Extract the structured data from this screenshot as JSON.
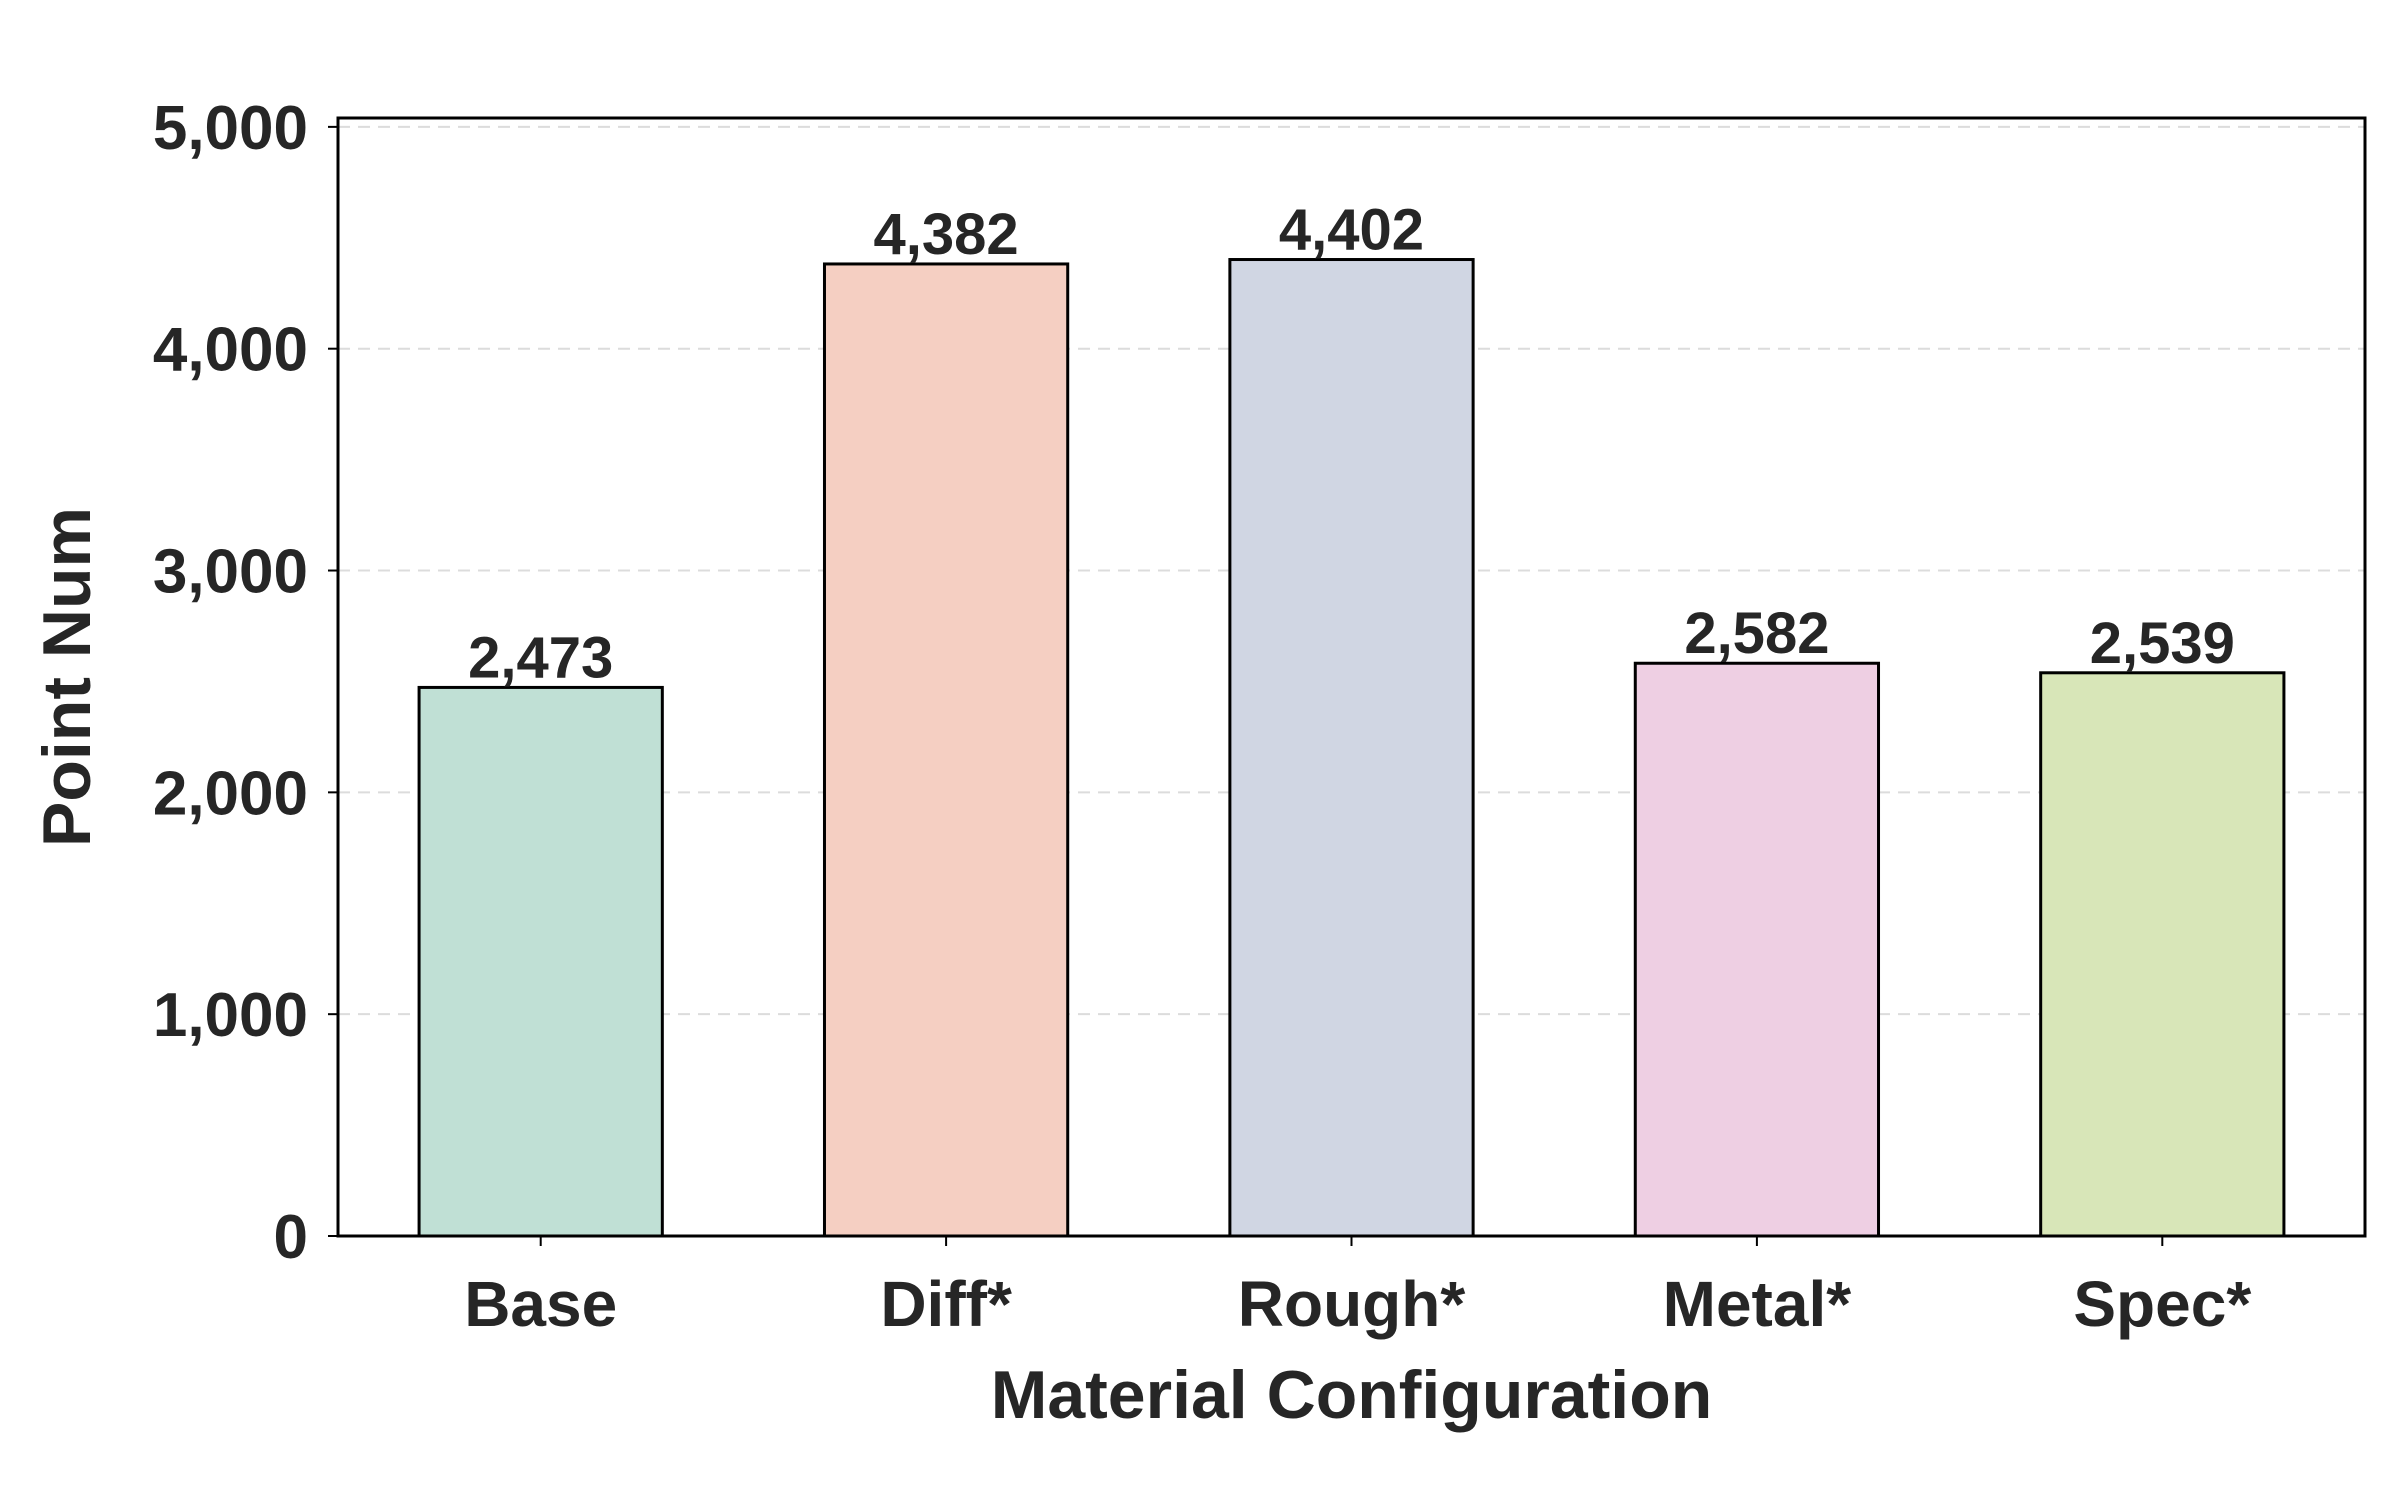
{
  "chart_data": {
    "type": "bar",
    "title": "",
    "xlabel": "Material Configuration",
    "ylabel": "Point Num",
    "categories": [
      "Base",
      "Diff*",
      "Rough*",
      "Metal*",
      "Spec*"
    ],
    "values": [
      2473,
      4382,
      4402,
      2582,
      2539
    ],
    "value_labels": [
      "2,473",
      "4,382",
      "4,402",
      "2,582",
      "2,539"
    ],
    "bar_colors": [
      "#c0e0d5",
      "#f5cfc2",
      "#d0d6e3",
      "#eecfe3",
      "#d8e6b8"
    ],
    "bar_edge_color": "#000000",
    "ylim": [
      0,
      5040
    ],
    "yticks": [
      0,
      1000,
      2000,
      3000,
      4000,
      5000
    ],
    "ytick_labels": [
      "0",
      "1,000",
      "2,000",
      "3,000",
      "4,000",
      "5,000"
    ],
    "grid": true,
    "grid_axis": "y",
    "grid_style": "dashed",
    "legend": false
  }
}
